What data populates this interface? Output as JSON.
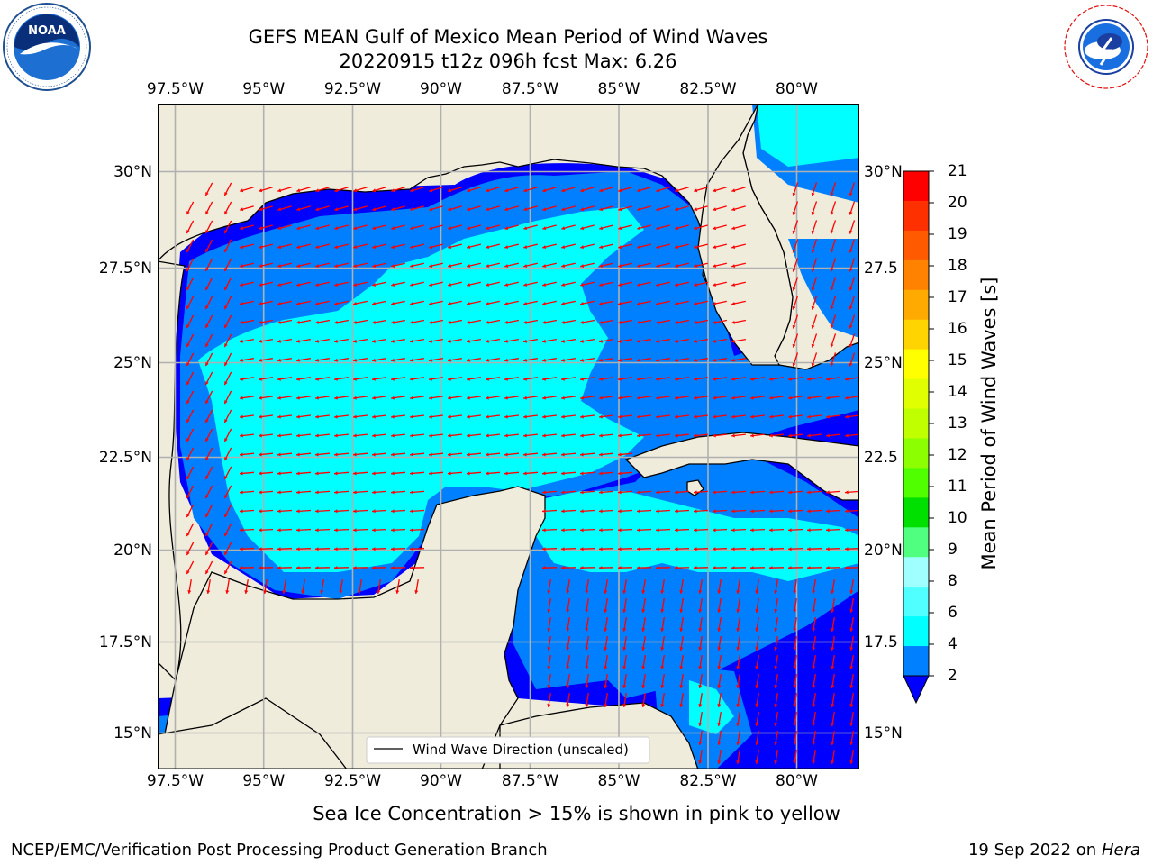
{
  "header": {
    "title_line1": "GEFS MEAN Gulf of Mexico Mean Period of Wind Waves",
    "title_line2": "20220915 t12z 096h fcst   Max: 6.26"
  },
  "logos": {
    "left": {
      "name": "NOAA",
      "ring_text": "NATIONAL OCEANIC AND ATMOSPHERIC ADMINISTRATION · U.S. DEPARTMENT OF COMMERCE"
    },
    "right": {
      "ring_text": "NATIONAL WEATHER SERVICE"
    }
  },
  "map": {
    "lon_ticks": [
      "97.5°W",
      "95°W",
      "92.5°W",
      "90°W",
      "87.5°W",
      "85°W",
      "82.5°W",
      "80°W"
    ],
    "lat_ticks_left": [
      "30°N",
      "27.5°N",
      "25°N",
      "22.5°N",
      "20°N",
      "17.5°N",
      "15°N"
    ],
    "lat_ticks_right": [
      "30°N",
      "27.5",
      "25°N",
      "22.5",
      "20°N",
      "17.5",
      "15°N"
    ],
    "legend_label": "Wind Wave Direction (unscaled)",
    "colors": {
      "land": "#efecdc",
      "ocean_deep": "#0000ff",
      "band_2_4": "#0080ff",
      "band_4_6": "#00ffff",
      "arrow": "#ff0000",
      "grid": "#b0b0b0"
    }
  },
  "colorbar": {
    "title": "Mean Period of Wind Waves [s]",
    "labels": [
      "21",
      "20",
      "19",
      "18",
      "17",
      "16",
      "15",
      "14",
      "13",
      "12",
      "11",
      "10",
      "9",
      "8",
      "6",
      "4",
      "2"
    ],
    "colors": [
      "#ff0000",
      "#ff3000",
      "#ff5a00",
      "#ff8200",
      "#ffaa00",
      "#ffd400",
      "#ffff00",
      "#e0ff00",
      "#c0ff00",
      "#8cff00",
      "#50ff00",
      "#00e000",
      "#50ff80",
      "#a0ffff",
      "#50ffff",
      "#00ffff",
      "#0080ff"
    ],
    "extend_color": "#0000ff"
  },
  "footer": {
    "note": "Sea Ice Concentration > 15% is shown in pink to yellow",
    "credit": "NCEP/EMC/Verification Post Processing Product Generation Branch",
    "date": "19 Sep 2022 on",
    "host": "Hera"
  }
}
